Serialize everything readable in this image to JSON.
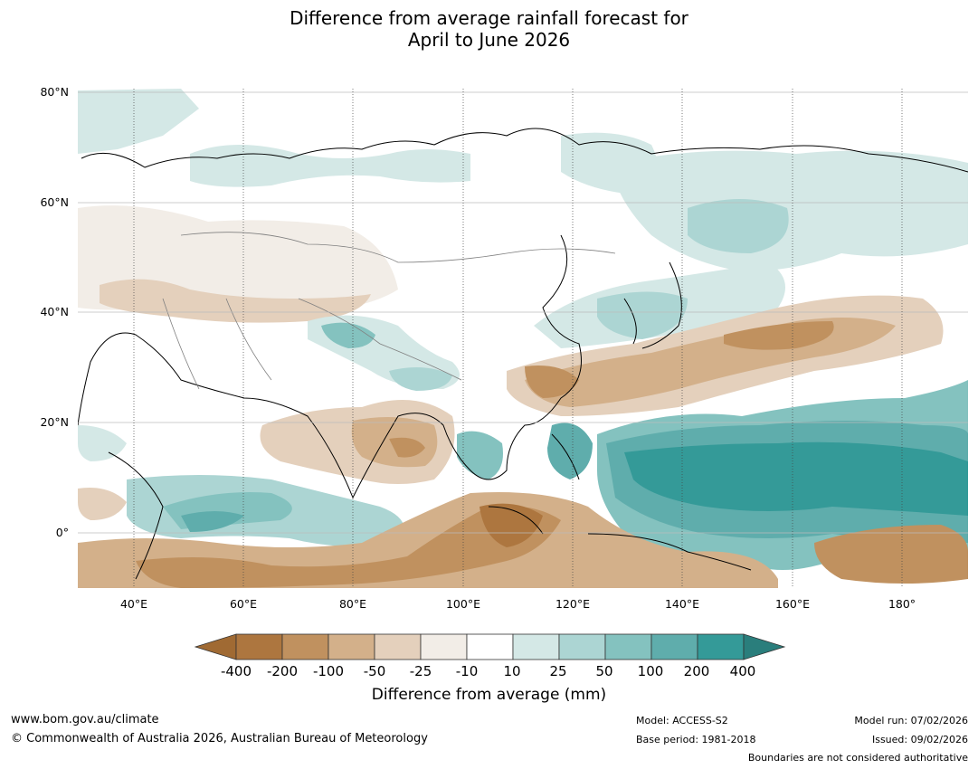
{
  "title_line1": "Difference from average rainfall forecast for",
  "title_line2": "April to June 2026",
  "lat_labels": [
    "80°N",
    "60°N",
    "40°N",
    "20°N",
    "0°"
  ],
  "lon_labels": [
    "40°E",
    "60°E",
    "80°E",
    "100°E",
    "120°E",
    "140°E",
    "160°E",
    "180°"
  ],
  "legend": {
    "ticks": [
      "-400",
      "-200",
      "-100",
      "-50",
      "-25",
      "-10",
      "10",
      "25",
      "50",
      "100",
      "200",
      "400"
    ],
    "colors": [
      "#a06a33",
      "#ad763f",
      "#c0915f",
      "#d3b08a",
      "#e4d0bc",
      "#f2ede7",
      "#ffffff",
      "#d4e8e6",
      "#acd5d3",
      "#84c2bf",
      "#5fadac",
      "#349a98",
      "#2a7e7c"
    ],
    "label": "Difference from average (mm)"
  },
  "footer": {
    "url": "www.bom.gov.au/climate",
    "copyright": "© Commonwealth of Australia 2026, Australian Bureau of Meteorology",
    "model": "Model: ACCESS-S2",
    "base_period": "Base period: 1981-2018",
    "model_run": "Model run: 07/02/2026",
    "issued": "Issued: 09/02/2026",
    "disclaimer": "Boundaries are not considered authoritative"
  }
}
